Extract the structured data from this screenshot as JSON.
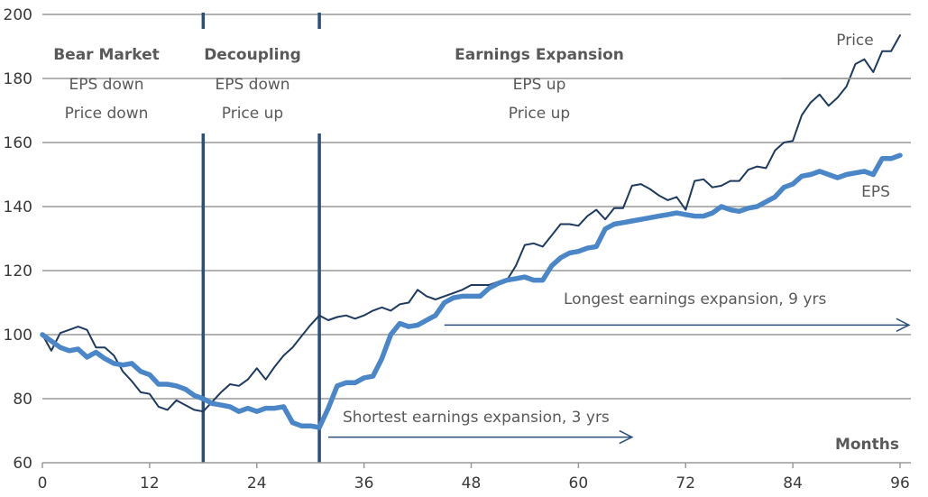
{
  "chart_data": {
    "type": "line",
    "title": "",
    "xlabel": "Months",
    "ylabel": "",
    "xlim": [
      0,
      96
    ],
    "ylim": [
      60,
      200
    ],
    "x_ticks": [
      0,
      12,
      24,
      36,
      48,
      60,
      72,
      84,
      96
    ],
    "y_ticks": [
      60,
      80,
      100,
      120,
      140,
      160,
      "180",
      200
    ],
    "grid": "horizontal",
    "phase_dividers": [
      18,
      31
    ],
    "phases": [
      {
        "title": "Bear Market",
        "line1": "EPS down",
        "line2": "Price down"
      },
      {
        "title": "Decoupling",
        "line1": "EPS down",
        "line2": "Price up"
      },
      {
        "title": "Earnings Expansion",
        "line1": "EPS up",
        "line2": "Price up"
      }
    ],
    "series": [
      {
        "name": "Price",
        "color": "#1f3a5f",
        "x": [
          0,
          1,
          2,
          3,
          4,
          5,
          6,
          7,
          8,
          9,
          10,
          11,
          12,
          13,
          14,
          15,
          16,
          17,
          18,
          19,
          20,
          21,
          22,
          23,
          24,
          25,
          26,
          27,
          28,
          29,
          30,
          31,
          32,
          33,
          34,
          35,
          36,
          37,
          38,
          39,
          40,
          41,
          42,
          43,
          44,
          45,
          46,
          47,
          48,
          49,
          50,
          51,
          52,
          53,
          54,
          55,
          56,
          57,
          58,
          59,
          60,
          61,
          62,
          63,
          64,
          65,
          66,
          67,
          68,
          69,
          70,
          71,
          72,
          73,
          74,
          75,
          76,
          77,
          78,
          79,
          80,
          81,
          82,
          83,
          84,
          85,
          86,
          87,
          88,
          89,
          90,
          91,
          92,
          93,
          94,
          95,
          96
        ],
        "values": [
          100,
          95,
          100.5,
          101.5,
          102.5,
          101.5,
          96,
          96,
          93.5,
          88.5,
          85.5,
          82,
          81.5,
          77.5,
          76.5,
          79.5,
          78,
          76.5,
          76,
          79,
          82,
          84.5,
          84,
          86,
          89.5,
          86,
          90,
          93.5,
          96,
          99.5,
          103,
          106,
          104.5,
          105.5,
          106,
          105,
          106,
          107.5,
          108.5,
          107.5,
          109.5,
          110,
          114,
          112,
          111,
          112,
          113,
          114,
          115.5,
          115.5,
          115.5,
          116.5,
          117,
          121.5,
          128,
          128.5,
          127.5,
          131,
          134.5,
          134.5,
          134,
          137,
          139,
          136,
          139.5,
          139.5,
          146.5,
          147,
          145.5,
          143.5,
          142,
          143,
          139,
          148,
          148.5,
          146,
          146.5,
          148,
          148,
          151.5,
          152.5,
          152,
          157.5,
          160,
          160.5,
          168.5,
          172.5,
          175,
          171.5,
          174,
          177.5,
          184.5,
          186,
          182,
          188.5,
          188.5,
          193.5
        ]
      },
      {
        "name": "EPS",
        "color": "#4a86c8",
        "x": [
          0,
          1,
          2,
          3,
          4,
          5,
          6,
          7,
          8,
          9,
          10,
          11,
          12,
          13,
          14,
          15,
          16,
          17,
          18,
          19,
          20,
          21,
          22,
          23,
          24,
          25,
          26,
          27,
          28,
          29,
          30,
          31,
          32,
          33,
          34,
          35,
          36,
          37,
          38,
          39,
          40,
          41,
          42,
          43,
          44,
          45,
          46,
          47,
          48,
          49,
          50,
          51,
          52,
          53,
          54,
          55,
          56,
          57,
          58,
          59,
          60,
          61,
          62,
          63,
          64,
          65,
          66,
          67,
          68,
          69,
          70,
          71,
          72,
          73,
          74,
          75,
          76,
          77,
          78,
          79,
          80,
          81,
          82,
          83,
          84,
          85,
          86,
          87,
          88,
          89,
          90,
          91,
          92,
          93,
          94,
          95,
          96
        ],
        "values": [
          100,
          98,
          96,
          95,
          95.5,
          93,
          94.5,
          92.5,
          91,
          90.5,
          91,
          88.5,
          87.5,
          84.5,
          84.5,
          84,
          83,
          81,
          80,
          78.5,
          78,
          77.5,
          76,
          77,
          76,
          77,
          77,
          77.5,
          72.5,
          71.5,
          71.5,
          71,
          77,
          84,
          85,
          85,
          86.5,
          87,
          92.5,
          100,
          103.5,
          102.5,
          103,
          104.5,
          106,
          110,
          111.5,
          112,
          112,
          112,
          114.5,
          116,
          117,
          117.5,
          118,
          117,
          117,
          121.5,
          124,
          125.5,
          126,
          127,
          127.5,
          133,
          134.5,
          135,
          135.5,
          136,
          136.5,
          137,
          137.5,
          138,
          137.5,
          137,
          137,
          138,
          140,
          139,
          138.5,
          139.5,
          140,
          141.5,
          143,
          146,
          147,
          149.5,
          150,
          151,
          150,
          149,
          150,
          150.5,
          151,
          150,
          155,
          155,
          156
        ]
      }
    ],
    "annotations": [
      {
        "text": "Longest earnings expansion, 9 yrs",
        "arrow_from_x": 45,
        "arrow_to_x": 97,
        "arrow_y": 103
      },
      {
        "text": "Shortest earnings expansion, 3 yrs",
        "arrow_from_x": 32,
        "arrow_to_x": 66,
        "arrow_y": 68
      }
    ],
    "series_label_positions": {
      "Price": "upper-right",
      "EPS": "right"
    }
  }
}
